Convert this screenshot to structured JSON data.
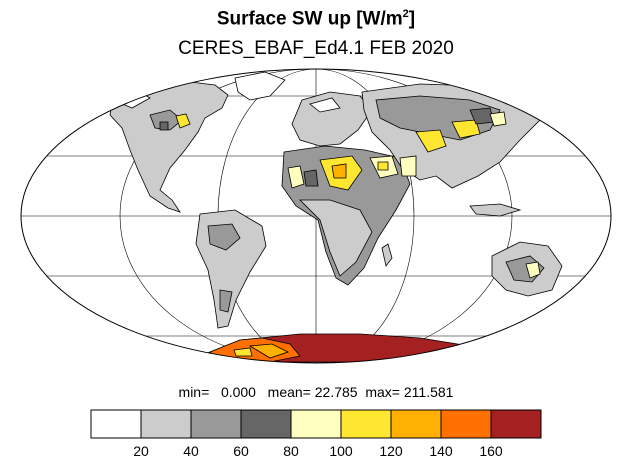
{
  "title": {
    "main": "Surface SW up [W/m",
    "sup": "2",
    "close": "]"
  },
  "subtitle": "CERES_EBAF_Ed4.1 FEB 2020",
  "stats": {
    "min_label": "min=",
    "min": "0.000",
    "mean_label": "mean=",
    "mean": "22.785",
    "max_label": "max=",
    "max": "211.581"
  },
  "colorbar": {
    "colors": [
      "#ffffff",
      "#cccccc",
      "#999999",
      "#666666",
      "#ffffc0",
      "#ffe630",
      "#ffb000",
      "#ff7000",
      "#a52020"
    ],
    "ticks": [
      "20",
      "40",
      "60",
      "80",
      "100",
      "120",
      "140",
      "160"
    ]
  }
}
